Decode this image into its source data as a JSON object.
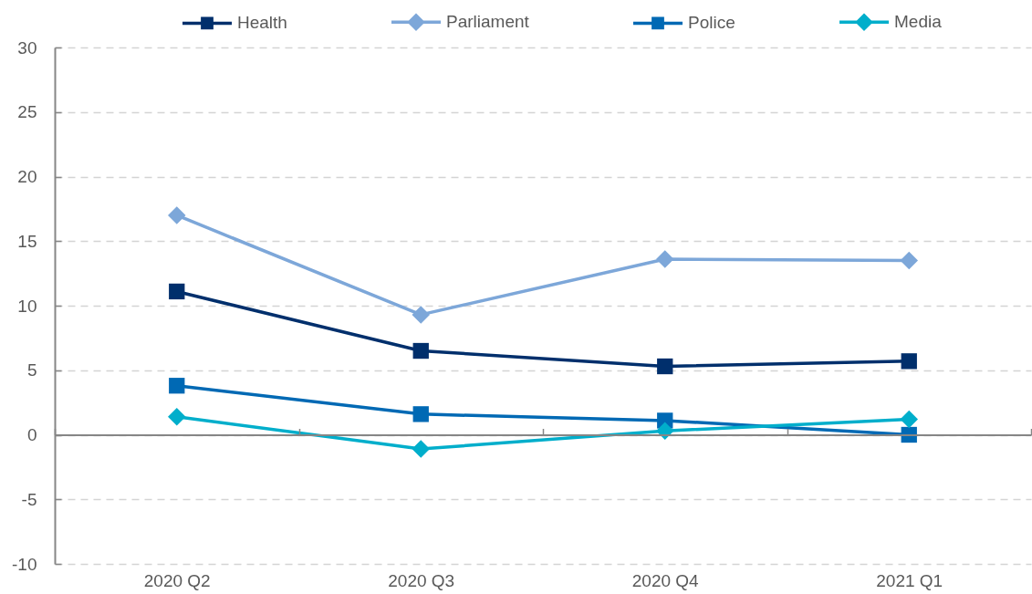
{
  "chart_data": {
    "type": "line",
    "categories": [
      "2020 Q2",
      "2020 Q3",
      "2020 Q4",
      "2021 Q1"
    ],
    "series": [
      {
        "name": "Health",
        "color": "#002f6c",
        "marker": "square",
        "values": [
          11.1,
          6.5,
          5.3,
          5.7
        ]
      },
      {
        "name": "Parliament",
        "color": "#7da7d9",
        "marker": "diamond",
        "values": [
          17.0,
          9.3,
          13.6,
          13.5
        ]
      },
      {
        "name": "Police",
        "color": "#0069b4",
        "marker": "square",
        "values": [
          3.8,
          1.6,
          1.1,
          0.0
        ]
      },
      {
        "name": "Media",
        "color": "#00aecb",
        "marker": "diamond",
        "values": [
          1.4,
          -1.1,
          0.3,
          1.2
        ]
      }
    ],
    "ylim": [
      -10,
      30
    ],
    "yticks": [
      -10,
      -5,
      0,
      5,
      10,
      15,
      20,
      25,
      30
    ],
    "grid": "y",
    "legend": "top"
  }
}
